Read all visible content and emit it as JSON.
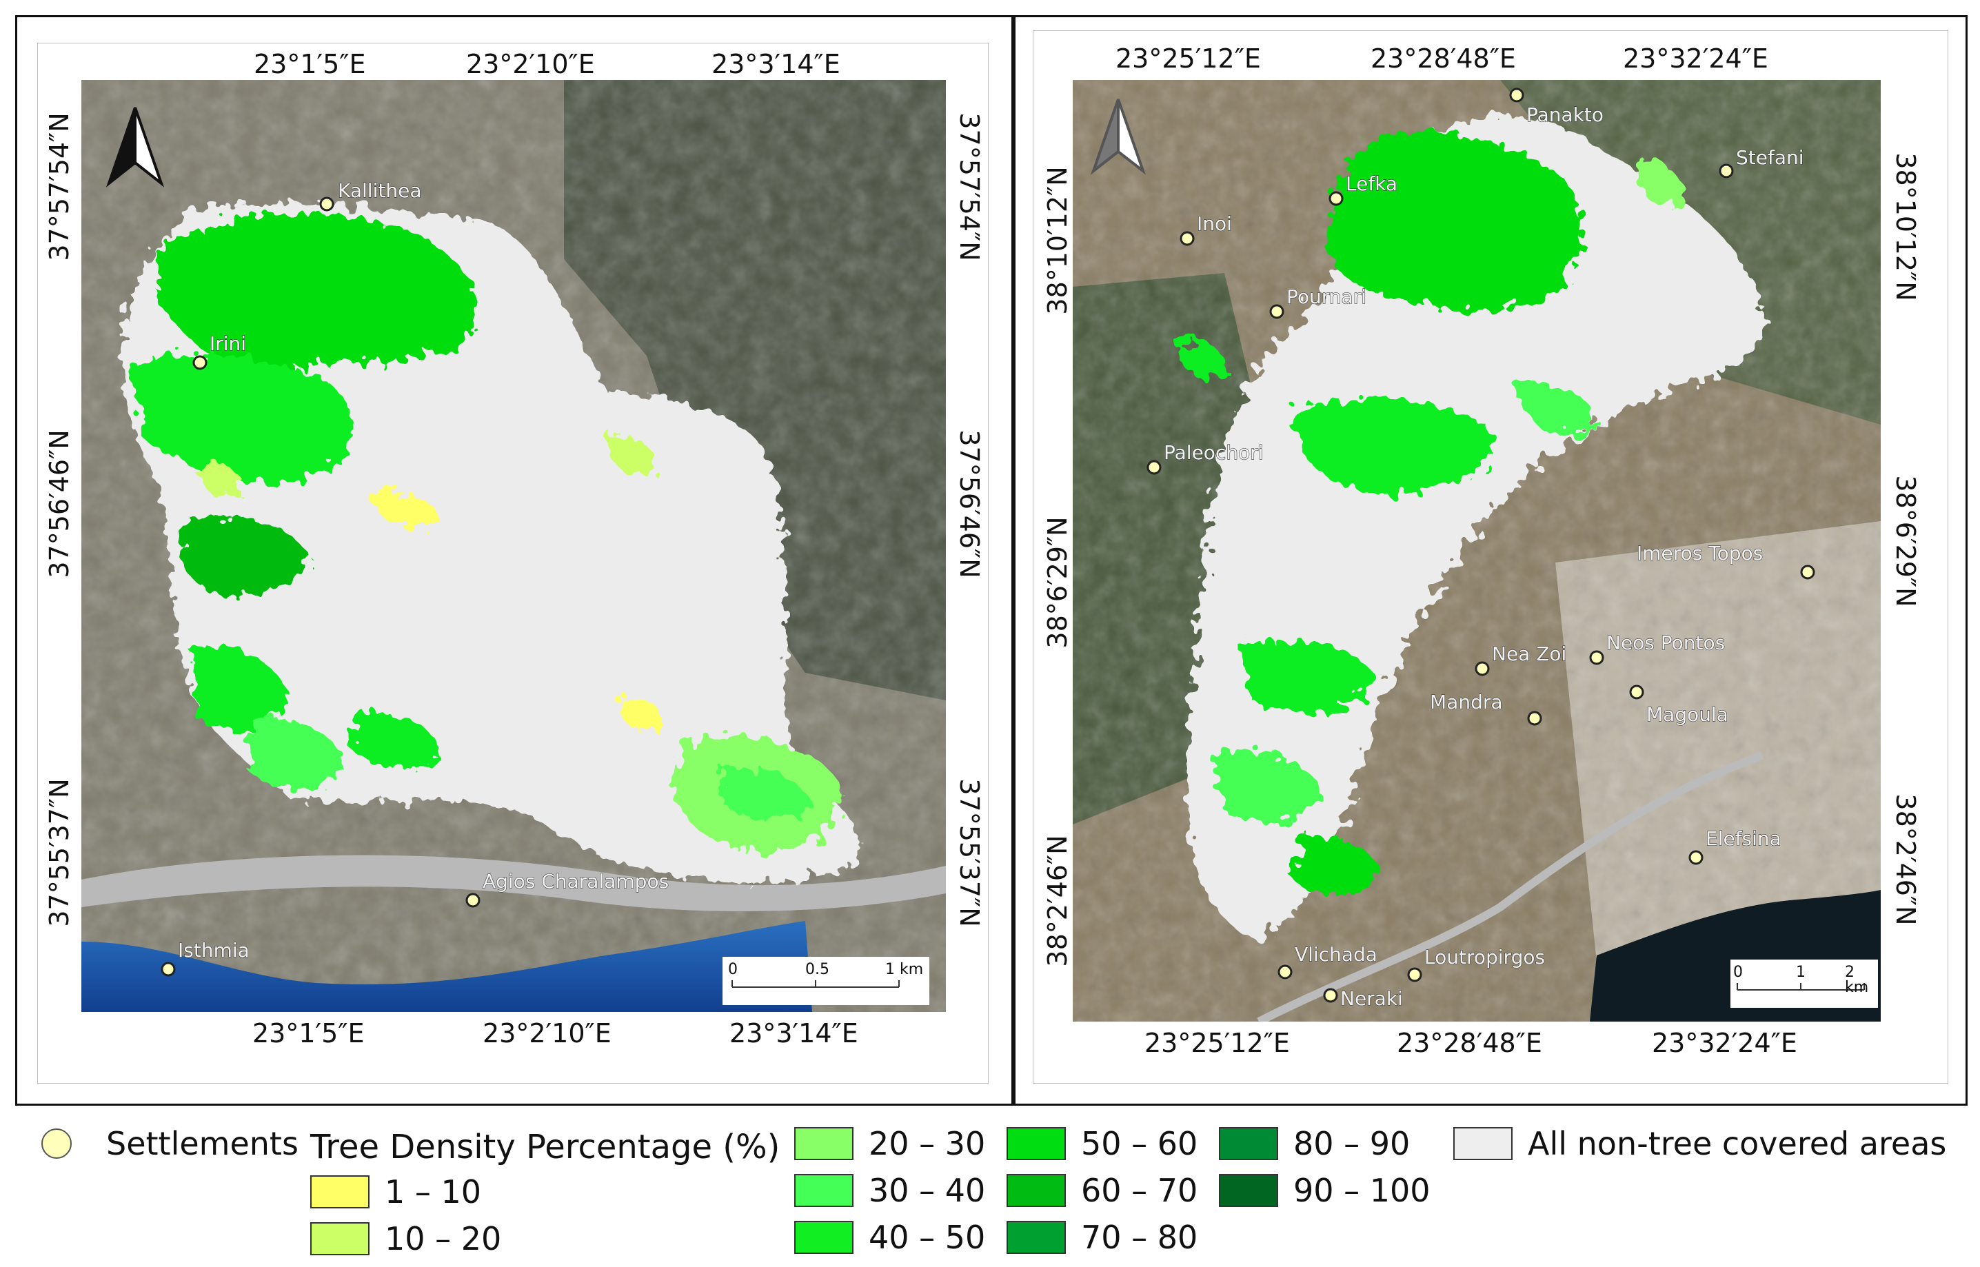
{
  "legend": {
    "settlements_label": "Settlements",
    "title": "Tree Density Percentage (%)",
    "classes": [
      {
        "label": "1 – 10",
        "color": "#ffff66"
      },
      {
        "label": "10 – 20",
        "color": "#ccff66"
      },
      {
        "label": "20 – 30",
        "color": "#88ff66"
      },
      {
        "label": "30 – 40",
        "color": "#44ff55"
      },
      {
        "label": "40 – 50",
        "color": "#11ee22"
      },
      {
        "label": "50 – 60",
        "color": "#00dd11"
      },
      {
        "label": "60 – 70",
        "color": "#00bb11"
      },
      {
        "label": "70 – 80",
        "color": "#00a030"
      },
      {
        "label": "80 – 90",
        "color": "#008a33"
      },
      {
        "label": "90 – 100",
        "color": "#006622"
      }
    ],
    "non_tree_label": "All non-tree covered areas",
    "non_tree_color": "#eeeeee",
    "settlement_color": "#ffffbb"
  },
  "map1": {
    "top_coords": [
      "23°1′5″E",
      "23°2′10″E",
      "23°3′14″E"
    ],
    "bottom_coords": [
      "23°1′5″E",
      "23°2′10″E",
      "23°3′14″E"
    ],
    "left_coords": [
      "37°57′54″N",
      "37°56′46″N",
      "37°55′37″N"
    ],
    "right_coords": [
      "37°57′54″N",
      "37°56′46″N",
      "37°55′37″N"
    ],
    "settlements": [
      "Kallithea",
      "Irini",
      "Agios Charalampos",
      "Isthmia"
    ],
    "scale": {
      "ticks": [
        "0",
        "0.5",
        "1 km"
      ]
    }
  },
  "map2": {
    "top_coords": [
      "23°25′12″E",
      "23°28′48″E",
      "23°32′24″E"
    ],
    "bottom_coords": [
      "23°25′12″E",
      "23°28′48″E",
      "23°32′24″E"
    ],
    "left_coords": [
      "38°10′12″N",
      "38°6′29″N",
      "38°2′46″N"
    ],
    "right_coords": [
      "38°10′12″N",
      "38°6′29″N",
      "38°2′46″N"
    ],
    "settlements": [
      "Panakto",
      "Stefani",
      "Lefka",
      "Inoi",
      "Pournari",
      "Paleochori",
      "Imeros Topos",
      "Nea Zoi",
      "Neos Pontos",
      "Mandra",
      "Magoula",
      "Elefsina",
      "Vlichada",
      "Loutropirgos",
      "Neraki"
    ],
    "scale": {
      "ticks": [
        "0",
        "1",
        "2 km"
      ]
    }
  }
}
